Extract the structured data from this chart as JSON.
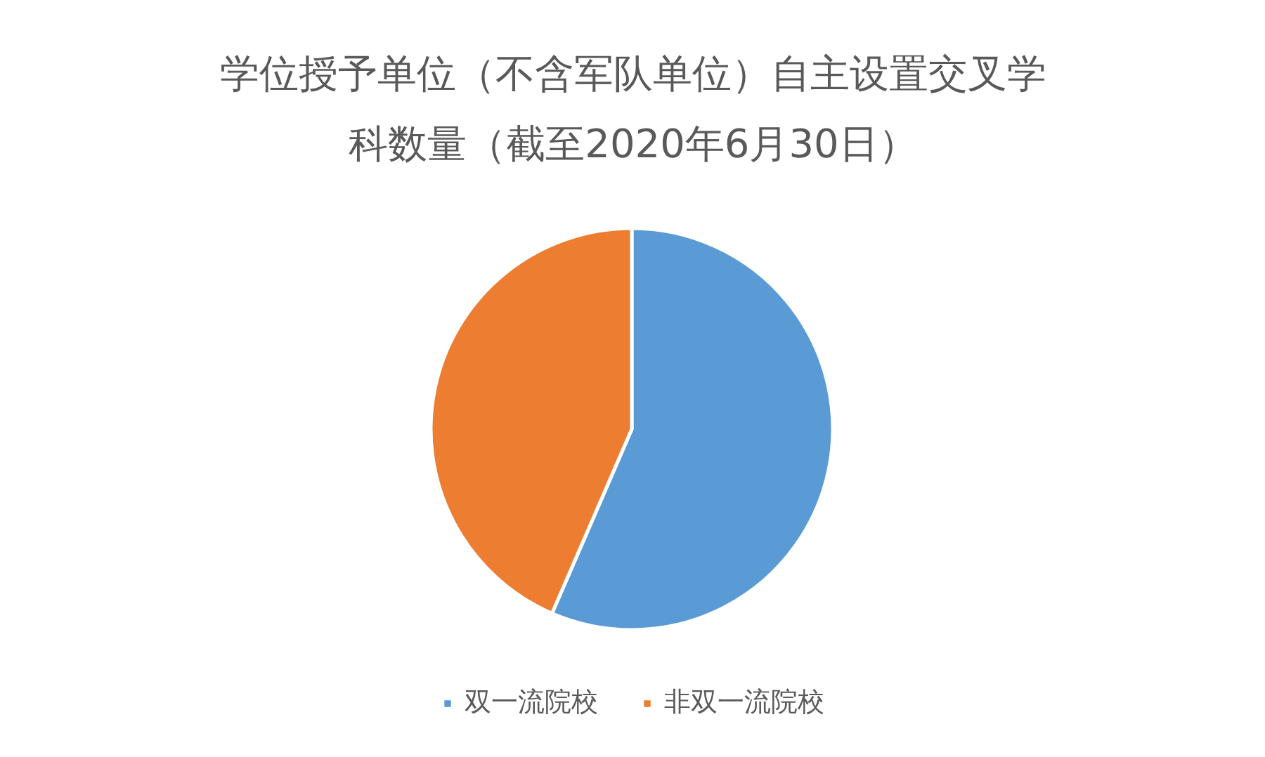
{
  "chart_data": {
    "type": "pie",
    "title": "学位授予单位（不含军队单位）自主设置交叉学科数量（截至2020年6月30日）",
    "categories": [
      "双一流院校",
      "非双一流院校"
    ],
    "values": [
      56.5,
      43.5
    ],
    "colors": [
      "#5b9bd5",
      "#ed7d31"
    ],
    "legend": "bottom"
  }
}
